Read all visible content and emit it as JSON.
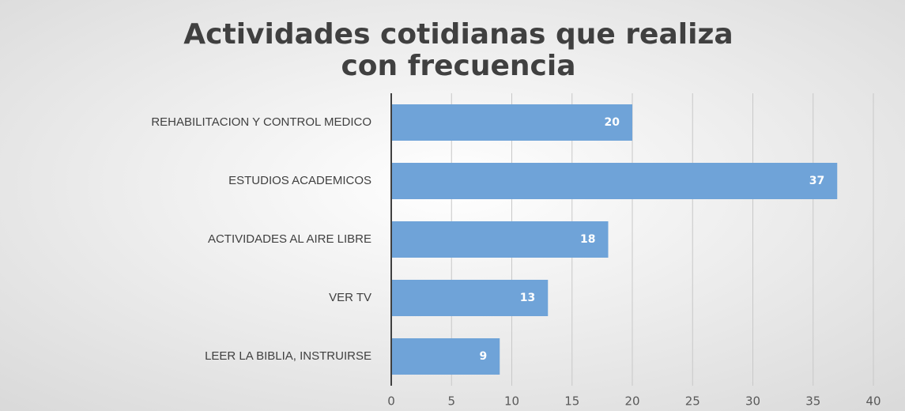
{
  "chart_data": {
    "type": "bar",
    "orientation": "horizontal",
    "title": [
      "Actividades cotidianas que realiza",
      "con frecuencia"
    ],
    "categories": [
      "REHABILITACION Y CONTROL MEDICO",
      "ESTUDIOS ACADEMICOS",
      "ACTIVIDADES AL AIRE LIBRE",
      "VER TV",
      "LEER LA BIBLIA, INSTRUIRSE"
    ],
    "values": [
      20,
      37,
      18,
      13,
      9
    ],
    "color": "#6fa3d8",
    "xlim": [
      0,
      40
    ],
    "xticks": [
      0,
      5,
      10,
      15,
      20,
      25,
      30,
      35,
      40
    ],
    "grid": true
  }
}
